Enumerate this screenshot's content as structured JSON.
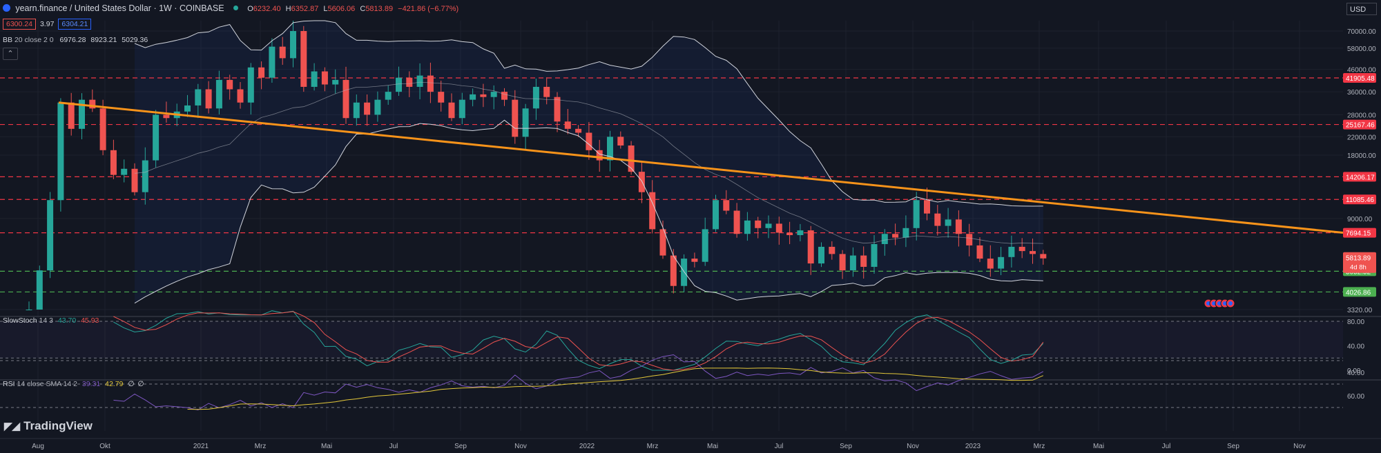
{
  "header": {
    "symbol": "yearn.finance / United States Dollar · 1W · COINBASE",
    "open_label": "O",
    "open": "6232.40",
    "high_label": "H",
    "high": "6352.87",
    "low_label": "L",
    "low": "5606.06",
    "close_label": "C",
    "close": "5813.89",
    "change": "−421.86 (−6.77%)",
    "bid": "6300.24",
    "spread": "3.97",
    "ask": "6304.21",
    "currency": "USD"
  },
  "indicators": {
    "bb": {
      "name": "BB",
      "params": "20 close 2 0",
      "basis": "6976.28",
      "upper": "8923.21",
      "lower": "5029.36"
    },
    "stoch": {
      "name": "SlowStoch",
      "params": "14 3",
      "k": "43.70",
      "d": "45.93"
    },
    "rsi": {
      "name": "RSI",
      "params": "14 close SMA 14 2",
      "rsi": "39.31",
      "sma": "42.79",
      "extra1": "∅",
      "extra2": "∅"
    }
  },
  "branding": {
    "logo_text": "TradingView"
  },
  "colors": {
    "bull": "#26a69a",
    "bear": "#ef5350",
    "trend": "#f7931a",
    "resistance": "#f23645",
    "support": "#4caf50",
    "background": "#131722"
  },
  "chart_data": {
    "type": "candlestick",
    "price_scale": "log",
    "y_ticks": [
      70000,
      58000,
      46000,
      36000,
      28000,
      22000,
      18000,
      9000,
      3320
    ],
    "y_tick_labels": [
      "70000.00",
      "58000.00",
      "46000.00",
      "36000.00",
      "28000.00",
      "22000.00",
      "18000.00",
      "9000.00",
      "3320.00"
    ],
    "x_labels": [
      "Aug",
      "Okt",
      "2021",
      "Mrz",
      "Mai",
      "Jul",
      "Sep",
      "Nov",
      "2022",
      "Mrz",
      "Mai",
      "Jul",
      "Sep",
      "Nov",
      "2023",
      "Mrz",
      "Mai",
      "Jul",
      "Sep",
      "Nov"
    ],
    "horizontal_levels": [
      {
        "value": 41905.48,
        "label": "41905.48",
        "kind": "resistance"
      },
      {
        "value": 25167.46,
        "label": "25167.46",
        "kind": "resistance"
      },
      {
        "value": 14206.17,
        "label": "14206.17",
        "kind": "resistance"
      },
      {
        "value": 11085.46,
        "label": "11085.46",
        "kind": "resistance"
      },
      {
        "value": 7694.15,
        "label": "7694.15",
        "kind": "resistance"
      },
      {
        "value": 5052.52,
        "label": "5052.52",
        "kind": "support"
      },
      {
        "value": 4026.86,
        "label": "4026.86",
        "kind": "support"
      }
    ],
    "last_price": {
      "value": 5813.89,
      "label": "5813.89",
      "countdown": "4d 8h"
    },
    "trendline": {
      "start": 32000,
      "end": 7700
    },
    "closes": [
      3300,
      5100,
      11000,
      32000,
      24000,
      33000,
      30000,
      19000,
      14500,
      15500,
      12000,
      17000,
      28000,
      27000,
      29000,
      31000,
      37000,
      30000,
      41000,
      37000,
      32000,
      47000,
      42000,
      59000,
      52000,
      70000,
      38000,
      45000,
      39000,
      41000,
      27000,
      32000,
      28000,
      33000,
      36000,
      42000,
      38000,
      43000,
      36000,
      32000,
      27000,
      33000,
      35000,
      34000,
      36000,
      33000,
      22000,
      30000,
      38000,
      34000,
      26000,
      24000,
      23000,
      19000,
      17000,
      22000,
      20000,
      15000,
      12000,
      8000,
      6000,
      4300,
      5800,
      5600,
      8000,
      11000,
      9800,
      7600,
      8800,
      8100,
      8500,
      7700,
      7500,
      7900,
      5500,
      6600,
      6100,
      5100,
      6000,
      5300,
      6800,
      7600,
      7300,
      8100,
      11000,
      9500,
      8300,
      8900,
      7600,
      6700,
      5800,
      5200,
      5900,
      6600,
      6300,
      6100,
      5813.89
    ],
    "stoch_k_last": 43.7,
    "stoch_d_last": 45.93,
    "stoch_ticks": [
      80,
      40,
      0
    ],
    "stoch_tick_labels": [
      "80.00",
      "40.00",
      "0.00"
    ],
    "rsi_last": 39.31,
    "rsi_sma_last": 42.79,
    "rsi_ticks": [
      60,
      40
    ],
    "rsi_tick_labels": [
      "60.00",
      "40.00"
    ]
  }
}
